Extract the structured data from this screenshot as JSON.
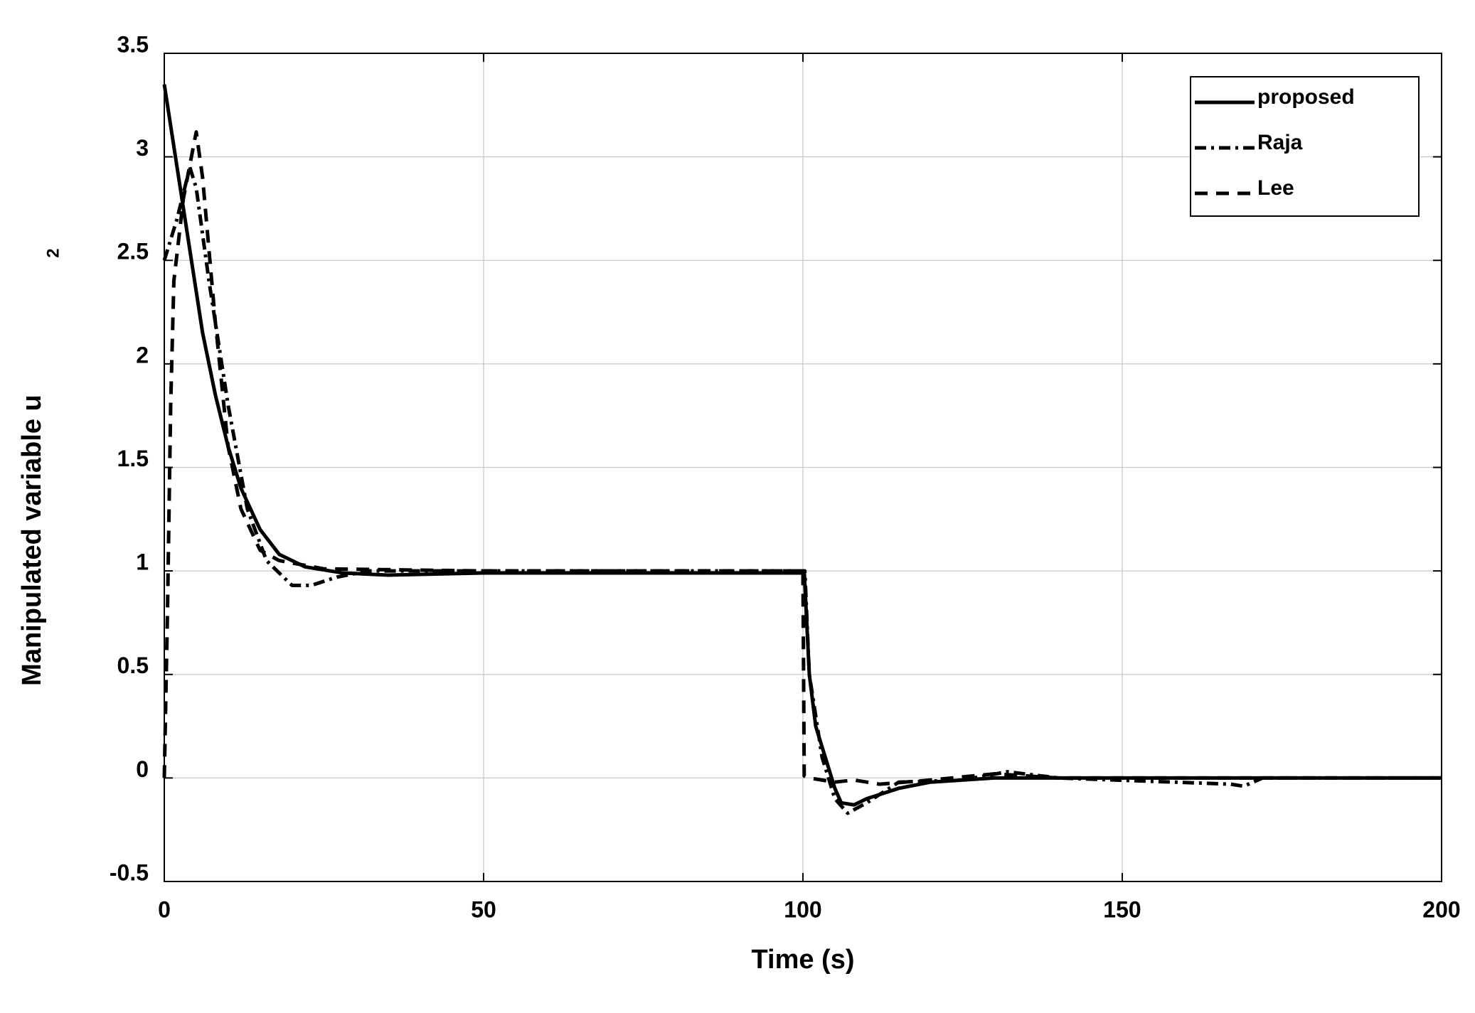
{
  "chart_data": {
    "type": "line",
    "xlabel": "Time (s)",
    "ylabel": "Manipulated variable u",
    "ylabel_subscript": "2",
    "xlim": [
      0,
      200
    ],
    "ylim": [
      -0.5,
      3.5
    ],
    "xticks": [
      0,
      50,
      100,
      150,
      200
    ],
    "yticks": [
      -0.5,
      0,
      0.5,
      1,
      1.5,
      2,
      2.5,
      3,
      3.5
    ],
    "grid": true,
    "legend": "upper right",
    "series": [
      {
        "name": "proposed",
        "color": "#000000",
        "dash": "solid",
        "x": [
          0,
          2,
          4,
          6,
          8,
          10,
          12,
          15,
          18,
          22,
          28,
          35,
          50,
          100,
          100.2,
          101,
          102,
          104,
          105,
          106,
          108,
          110,
          115,
          120,
          130,
          200
        ],
        "values": [
          3.35,
          2.95,
          2.55,
          2.15,
          1.85,
          1.6,
          1.4,
          1.2,
          1.08,
          1.02,
          0.99,
          0.98,
          0.99,
          0.99,
          1.0,
          0.5,
          0.25,
          0.05,
          -0.05,
          -0.12,
          -0.13,
          -0.1,
          -0.05,
          -0.02,
          0,
          0
        ]
      },
      {
        "name": "Raja",
        "color": "#000000",
        "dash": "dashdot",
        "x": [
          0,
          2,
          4,
          5,
          7,
          10,
          13,
          16,
          20,
          23,
          27,
          32,
          50,
          100,
          100.3,
          101,
          103,
          105,
          107,
          110,
          115,
          125,
          132,
          140,
          167,
          169,
          172,
          200
        ],
        "values": [
          2.5,
          2.7,
          2.95,
          2.85,
          2.4,
          1.8,
          1.3,
          1.05,
          0.93,
          0.93,
          0.97,
          1.0,
          1.0,
          1.0,
          1.0,
          0.5,
          0.1,
          -0.1,
          -0.17,
          -0.12,
          -0.02,
          -0.01,
          0.03,
          0,
          -0.03,
          -0.04,
          0,
          0
        ]
      },
      {
        "name": "Lee",
        "color": "#000000",
        "dash": "dashed",
        "x": [
          0,
          0.5,
          1,
          1.5,
          3,
          5,
          6,
          8,
          10,
          12,
          15,
          18,
          25,
          50,
          100,
          100.2,
          101,
          105,
          108,
          112,
          120,
          130,
          140,
          200
        ],
        "values": [
          0,
          0.8,
          1.8,
          2.4,
          2.8,
          3.12,
          2.9,
          2.2,
          1.6,
          1.3,
          1.1,
          1.05,
          1.01,
          1.0,
          1.0,
          0.01,
          0.0,
          -0.02,
          -0.01,
          -0.03,
          -0.01,
          0.02,
          0,
          0
        ]
      }
    ]
  }
}
